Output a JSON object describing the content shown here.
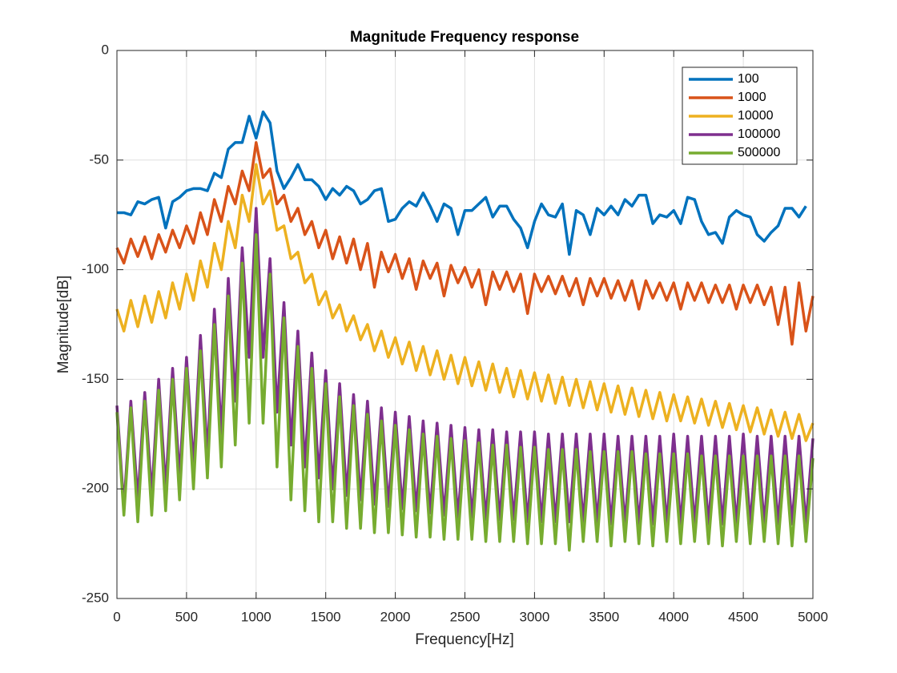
{
  "chart_data": {
    "type": "line",
    "title": "Magnitude Frequency response",
    "xlabel": "Frequency[Hz]",
    "ylabel": "Magnitude[dB]",
    "xlim": [
      0,
      5000
    ],
    "ylim": [
      -250,
      0
    ],
    "xticks": [
      0,
      500,
      1000,
      1500,
      2000,
      2500,
      3000,
      3500,
      4000,
      4500,
      5000
    ],
    "yticks": [
      -250,
      -200,
      -150,
      -100,
      -50,
      0
    ],
    "grid": true,
    "legend": "northeast",
    "x": [
      0,
      50,
      100,
      150,
      200,
      250,
      300,
      350,
      400,
      450,
      500,
      550,
      600,
      650,
      700,
      750,
      800,
      850,
      900,
      950,
      1000,
      1050,
      1100,
      1150,
      1200,
      1250,
      1300,
      1350,
      1400,
      1450,
      1500,
      1550,
      1600,
      1650,
      1700,
      1750,
      1800,
      1850,
      1900,
      1950,
      2000,
      2050,
      2100,
      2150,
      2200,
      2250,
      2300,
      2350,
      2400,
      2450,
      2500,
      2550,
      2600,
      2650,
      2700,
      2750,
      2800,
      2850,
      2900,
      2950,
      3000,
      3050,
      3100,
      3150,
      3200,
      3250,
      3300,
      3350,
      3400,
      3450,
      3500,
      3550,
      3600,
      3650,
      3700,
      3750,
      3800,
      3850,
      3900,
      3950,
      4000,
      4050,
      4100,
      4150,
      4200,
      4250,
      4300,
      4350,
      4400,
      4450,
      4500,
      4550,
      4600,
      4650,
      4700,
      4750,
      4800,
      4850,
      4900,
      4950,
      5000
    ],
    "series": [
      {
        "name": "100",
        "color": "#0072bd",
        "values": [
          -74,
          -74,
          -75,
          -69,
          -70,
          -68,
          -67,
          -81,
          -69,
          -67,
          -64,
          -63,
          -63,
          -64,
          -56,
          -58,
          -45,
          -42,
          -42,
          -30,
          -40,
          -28,
          -33,
          -55,
          -63,
          -58,
          -52,
          -59,
          -59,
          -62,
          -68,
          -63,
          -66,
          -62,
          -64,
          -70,
          -68,
          -64,
          -63,
          -78,
          -77,
          -72,
          -69,
          -71,
          -65,
          -71,
          -78,
          -70,
          -72,
          -84,
          -73,
          -73,
          -70,
          -67,
          -76,
          -71,
          -71,
          -77,
          -81,
          -90,
          -78,
          -70,
          -75,
          -76,
          -70,
          -93,
          -73,
          -75,
          -84,
          -72,
          -75,
          -71,
          -75,
          -68,
          -71,
          -66,
          -66,
          -79,
          -75,
          -76,
          -73,
          -79,
          -67,
          -68,
          -78,
          -84,
          -83,
          -88,
          -76,
          -73,
          -75,
          -76,
          -84,
          -87,
          -83,
          -80,
          -72,
          -72,
          -76,
          -71,
          null
        ]
      },
      {
        "name": "1000",
        "color": "#d95319",
        "values": [
          -90,
          -97,
          -86,
          -94,
          -85,
          -95,
          -84,
          -92,
          -82,
          -90,
          -80,
          -88,
          -74,
          -84,
          -68,
          -78,
          -62,
          -70,
          -55,
          -64,
          -42,
          -58,
          -54,
          -70,
          -66,
          -78,
          -72,
          -84,
          -78,
          -90,
          -82,
          -95,
          -85,
          -97,
          -86,
          -100,
          -88,
          -108,
          -92,
          -101,
          -93,
          -104,
          -95,
          -109,
          -96,
          -104,
          -97,
          -112,
          -98,
          -106,
          -99,
          -108,
          -100,
          -116,
          -101,
          -109,
          -101,
          -110,
          -102,
          -120,
          -102,
          -110,
          -103,
          -111,
          -103,
          -112,
          -104,
          -116,
          -104,
          -112,
          -104,
          -113,
          -105,
          -114,
          -105,
          -118,
          -105,
          -113,
          -106,
          -114,
          -106,
          -118,
          -106,
          -114,
          -106,
          -115,
          -107,
          -115,
          -107,
          -118,
          -107,
          -115,
          -107,
          -116,
          -108,
          -125,
          -108,
          -134,
          -106,
          -128,
          -112
        ]
      },
      {
        "name": "10000",
        "color": "#edb120",
        "values": [
          -118,
          -128,
          -114,
          -126,
          -112,
          -124,
          -110,
          -122,
          -106,
          -118,
          -102,
          -114,
          -96,
          -108,
          -88,
          -100,
          -78,
          -90,
          -66,
          -78,
          -52,
          -70,
          -64,
          -82,
          -80,
          -95,
          -92,
          -106,
          -102,
          -116,
          -110,
          -122,
          -116,
          -128,
          -121,
          -132,
          -125,
          -137,
          -128,
          -140,
          -131,
          -143,
          -133,
          -146,
          -135,
          -148,
          -137,
          -150,
          -139,
          -152,
          -140,
          -153,
          -142,
          -155,
          -143,
          -156,
          -145,
          -158,
          -146,
          -159,
          -147,
          -160,
          -148,
          -161,
          -149,
          -162,
          -150,
          -163,
          -151,
          -164,
          -152,
          -165,
          -153,
          -166,
          -154,
          -167,
          -155,
          -168,
          -156,
          -169,
          -157,
          -169,
          -158,
          -170,
          -159,
          -171,
          -160,
          -172,
          -161,
          -173,
          -162,
          -174,
          -163,
          -175,
          -164,
          -176,
          -165,
          -177,
          -166,
          -178,
          -170
        ]
      },
      {
        "name": "100000",
        "color": "#7e2f8e",
        "values": [
          -162,
          -208,
          -160,
          -205,
          -156,
          -203,
          -150,
          -200,
          -145,
          -195,
          -140,
          -190,
          -130,
          -185,
          -118,
          -175,
          -104,
          -160,
          -90,
          -140,
          -72,
          -140,
          -95,
          -165,
          -115,
          -180,
          -128,
          -190,
          -138,
          -195,
          -146,
          -200,
          -152,
          -203,
          -157,
          -205,
          -160,
          -207,
          -163,
          -208,
          -165,
          -209,
          -167,
          -210,
          -169,
          -211,
          -170,
          -212,
          -171,
          -213,
          -172,
          -213,
          -173,
          -214,
          -173,
          -214,
          -174,
          -214,
          -174,
          -215,
          -174,
          -215,
          -175,
          -215,
          -175,
          -215,
          -175,
          -215,
          -175,
          -215,
          -175,
          -216,
          -176,
          -216,
          -176,
          -216,
          -176,
          -216,
          -176,
          -216,
          -175,
          -216,
          -176,
          -216,
          -176,
          -216,
          -176,
          -216,
          -176,
          -216,
          -175,
          -216,
          -176,
          -216,
          -176,
          -216,
          -176,
          -216,
          -176,
          -216,
          -177
        ]
      },
      {
        "name": "500000",
        "color": "#77ac30",
        "values": [
          -165,
          -212,
          -163,
          -215,
          -160,
          -212,
          -155,
          -210,
          -150,
          -205,
          -145,
          -200,
          -137,
          -195,
          -125,
          -190,
          -112,
          -180,
          -97,
          -170,
          -84,
          -170,
          -102,
          -190,
          -122,
          -205,
          -135,
          -210,
          -145,
          -215,
          -152,
          -215,
          -158,
          -218,
          -162,
          -218,
          -166,
          -220,
          -169,
          -220,
          -171,
          -221,
          -173,
          -222,
          -175,
          -222,
          -176,
          -223,
          -177,
          -223,
          -178,
          -223,
          -179,
          -224,
          -180,
          -224,
          -180,
          -224,
          -181,
          -225,
          -181,
          -225,
          -182,
          -225,
          -182,
          -228,
          -182,
          -224,
          -183,
          -224,
          -183,
          -226,
          -183,
          -224,
          -183,
          -225,
          -184,
          -226,
          -184,
          -224,
          -184,
          -225,
          -184,
          -224,
          -185,
          -225,
          -185,
          -226,
          -185,
          -224,
          -185,
          -225,
          -185,
          -224,
          -185,
          -225,
          -185,
          -226,
          -185,
          -224,
          -186
        ]
      }
    ]
  }
}
